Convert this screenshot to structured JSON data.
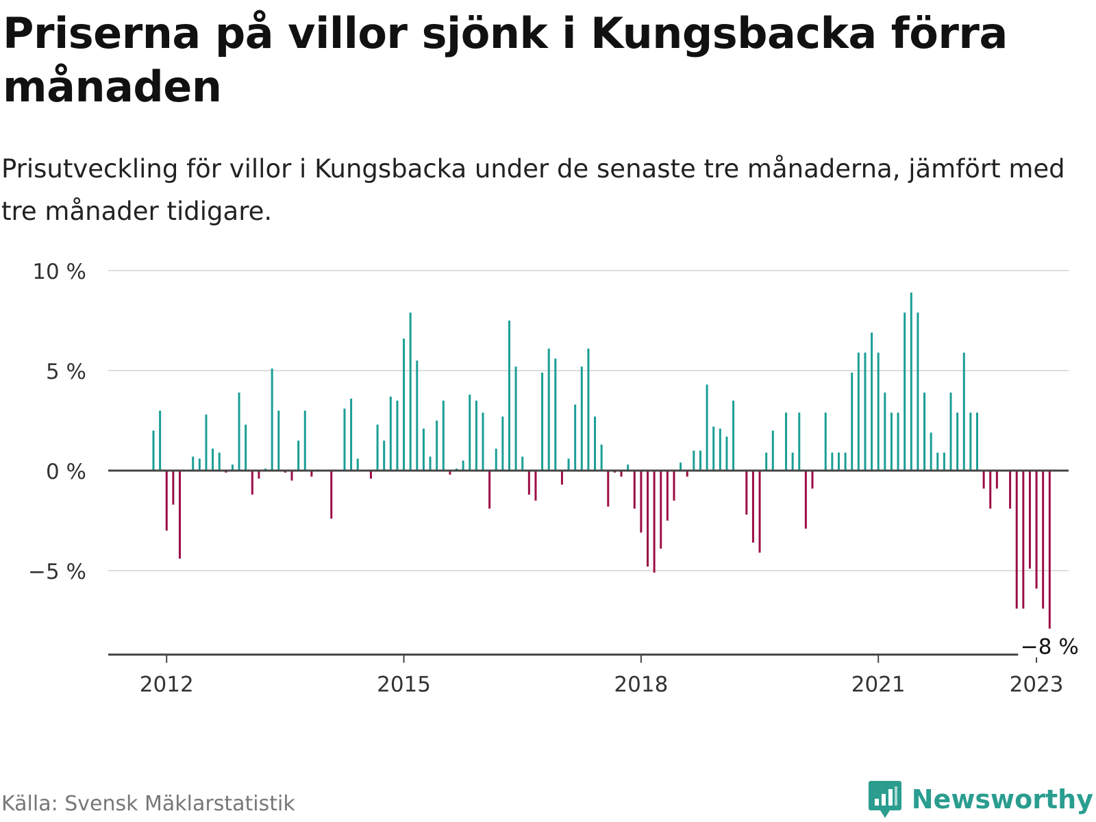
{
  "header": {
    "title": "Priserna på villor sjönk i Kungsbacka förra månaden",
    "subtitle": "Prisutveckling för villor i Kungsbacka under de senaste tre månaderna, jämfört med tre månader tidigare."
  },
  "footer": {
    "source": "Källa: Svensk Mäklarstatistik",
    "brand": "Newsworthy",
    "brand_icon": "bar-chart-speech-bubble-icon"
  },
  "colors": {
    "positive": "#1a9e96",
    "negative": "#9b0d45",
    "brand": "#2a9d8f",
    "grid": "#dddddd",
    "axis": "#444444"
  },
  "chart_data": {
    "type": "bar",
    "title": "Priserna på villor sjönk i Kungsbacka förra månaden",
    "xlabel": "",
    "ylabel": "",
    "x_start": "2011-11",
    "ylim": [
      -9.2,
      10
    ],
    "yticks": [
      {
        "value": 10,
        "label": "10 %"
      },
      {
        "value": 5,
        "label": "5 %"
      },
      {
        "value": 0,
        "label": "0 %"
      },
      {
        "value": -5,
        "label": "−5 %"
      }
    ],
    "xticks": [
      {
        "label": "2012",
        "index": 2
      },
      {
        "label": "2015",
        "index": 38
      },
      {
        "label": "2018",
        "index": 74
      },
      {
        "label": "2021",
        "index": 110
      },
      {
        "label": "2023",
        "index": 134
      }
    ],
    "last_value_label": "−8 %",
    "grid": true,
    "legend": "none",
    "values": [
      2.0,
      3.0,
      -3.0,
      -1.7,
      -4.4,
      0.0,
      0.7,
      0.6,
      2.8,
      1.1,
      0.9,
      -0.1,
      0.3,
      3.9,
      2.3,
      -1.2,
      -0.4,
      0.1,
      5.1,
      3.0,
      -0.1,
      -0.5,
      1.5,
      3.0,
      -0.3,
      0.0,
      0.0,
      -2.4,
      0.0,
      3.1,
      3.6,
      0.6,
      0.0,
      -0.4,
      2.3,
      1.5,
      3.7,
      3.5,
      6.6,
      7.9,
      5.5,
      2.1,
      0.7,
      2.5,
      3.5,
      -0.2,
      0.1,
      0.5,
      3.8,
      3.5,
      2.9,
      -1.9,
      1.1,
      2.7,
      7.5,
      5.2,
      0.7,
      -1.2,
      -1.5,
      4.9,
      6.1,
      5.6,
      -0.7,
      0.6,
      3.3,
      5.2,
      6.1,
      2.7,
      1.3,
      -1.8,
      -0.1,
      -0.3,
      0.3,
      -1.9,
      -3.1,
      -4.8,
      -5.1,
      -3.9,
      -2.5,
      -1.5,
      0.4,
      -0.3,
      1.0,
      1.0,
      4.3,
      2.2,
      2.1,
      1.7,
      3.5,
      0.0,
      -2.2,
      -3.6,
      -4.1,
      0.9,
      2.0,
      0.0,
      2.9,
      0.9,
      2.9,
      -2.9,
      -0.9,
      0.0,
      2.9,
      0.9,
      0.9,
      0.9,
      4.9,
      5.9,
      5.9,
      6.9,
      5.9,
      3.9,
      2.9,
      2.9,
      7.9,
      8.9,
      7.9,
      3.9,
      1.9,
      0.9,
      0.9,
      3.9,
      2.9,
      5.9,
      2.9,
      2.9,
      -0.9,
      -1.9,
      -0.9,
      0.0,
      -1.9,
      -6.9,
      -6.9,
      -4.9,
      -5.9,
      -6.9,
      -7.9
    ]
  }
}
